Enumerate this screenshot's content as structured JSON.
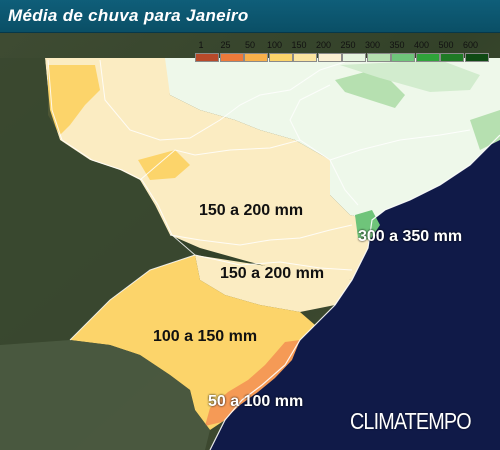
{
  "title": "Média de chuva para Janeiro",
  "legend": {
    "ticks": [
      "1",
      "25",
      "50",
      "100",
      "150",
      "200",
      "250",
      "300",
      "350",
      "400",
      "500",
      "600"
    ],
    "colors": [
      "#b84a2a",
      "#ee7a3a",
      "#f8b04a",
      "#fcd46a",
      "#fbe4a0",
      "#fbf0d2",
      "#e6f5df",
      "#b6e0b0",
      "#6fc47a",
      "#2fa33a",
      "#1f7a25",
      "#0f4a14"
    ]
  },
  "regions": [
    {
      "label": "150 a 200 mm"
    },
    {
      "label": "150 a 200 mm"
    },
    {
      "label": "100 a 150 mm"
    },
    {
      "label": "50 a 100 mm"
    },
    {
      "label": "300 a 350 mm"
    }
  ],
  "brand": "CLIMATEMPO"
}
